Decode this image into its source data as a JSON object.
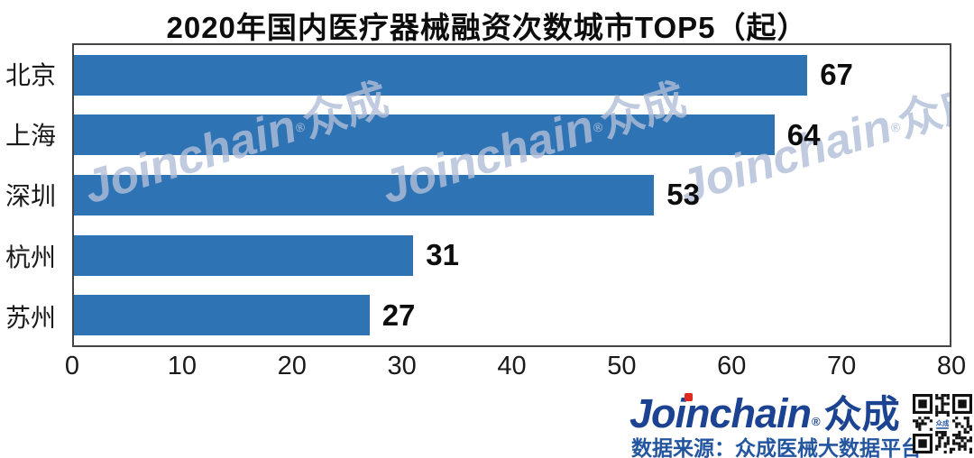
{
  "title": "2020年国内医疗器械融资次数城市TOP5（起）",
  "chart_data": {
    "type": "bar",
    "orientation": "horizontal",
    "title": "2020年国内医疗器械融资次数城市TOP5（起）",
    "categories": [
      "北京",
      "上海",
      "深圳",
      "杭州",
      "苏州"
    ],
    "values": [
      67,
      64,
      53,
      31,
      27
    ],
    "xlabel": "",
    "ylabel": "",
    "xlim": [
      0,
      80
    ],
    "x_ticks": [
      0,
      10,
      20,
      30,
      40,
      50,
      60,
      70,
      80
    ],
    "grid": false,
    "legend": false,
    "bar_color": "#2e74b5",
    "data_labels": true
  },
  "watermark": {
    "text_en": "Joinchain",
    "reg": "®",
    "text_cn": "众成",
    "color": "rgba(176,190,216,0.8)",
    "count": 3
  },
  "footer": {
    "logo_text": "Joinchain",
    "logo_reg": "®",
    "logo_suffix": "众成",
    "logo_color": "#1b4392",
    "accent_red": "#e02a21",
    "source_text": "数据来源：众成医械大数据平台",
    "source_color": "#2456a0",
    "qr_label": "众成"
  }
}
